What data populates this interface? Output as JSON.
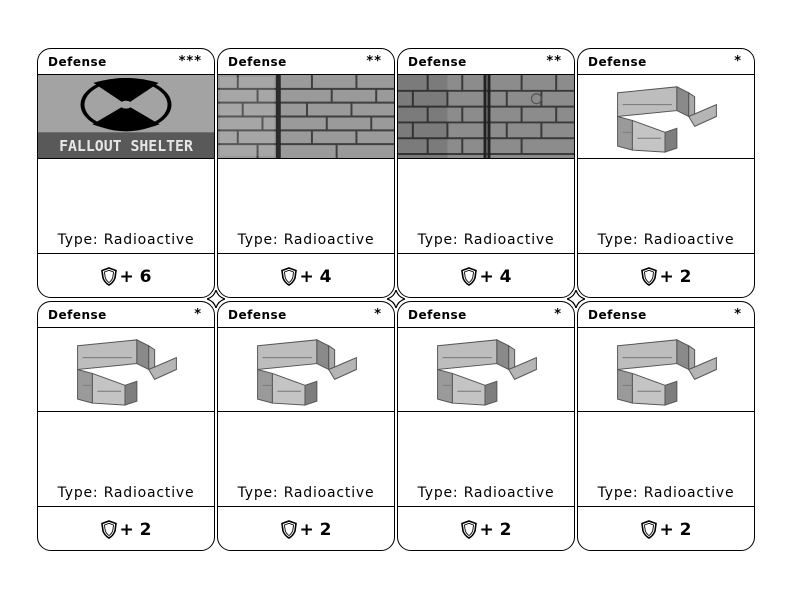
{
  "cards": [
    {
      "title": "Defense",
      "stars": "***",
      "art": "fallout-shelter",
      "art_text": "FALLOUT SHELTER",
      "type": "Type: Radioactive",
      "bonus": "+ 6"
    },
    {
      "title": "Defense",
      "stars": "**",
      "art": "brick-wall",
      "type": "Type: Radioactive",
      "bonus": "+ 4"
    },
    {
      "title": "Defense",
      "stars": "**",
      "art": "brick-wall",
      "type": "Type: Radioactive",
      "bonus": "+ 4"
    },
    {
      "title": "Defense",
      "stars": "*",
      "art": "stone-barrier",
      "type": "Type: Radioactive",
      "bonus": "+ 2"
    },
    {
      "title": "Defense",
      "stars": "*",
      "art": "stone-barrier",
      "type": "Type: Radioactive",
      "bonus": "+ 2"
    },
    {
      "title": "Defense",
      "stars": "*",
      "art": "stone-barrier",
      "type": "Type: Radioactive",
      "bonus": "+ 2"
    },
    {
      "title": "Defense",
      "stars": "*",
      "art": "stone-barrier",
      "type": "Type: Radioactive",
      "bonus": "+ 2"
    },
    {
      "title": "Defense",
      "stars": "*",
      "art": "stone-barrier",
      "type": "Type: Radioactive",
      "bonus": "+ 2"
    }
  ],
  "icon": "shield-icon"
}
